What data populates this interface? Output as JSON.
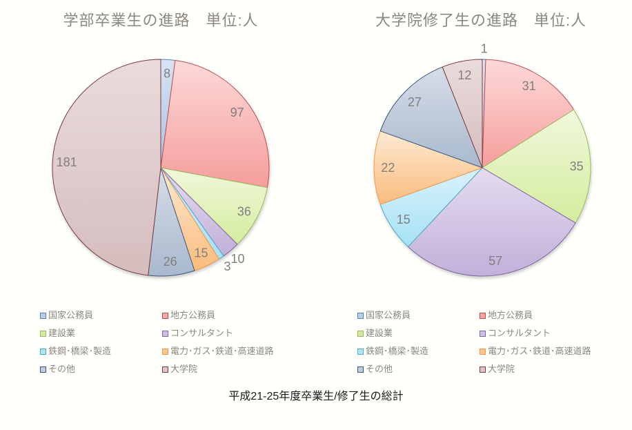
{
  "page": {
    "background": "#fffffc",
    "caption": "平成21-25年度卒業生/修了生の総計"
  },
  "colors": {
    "title_text": "#8c887e",
    "legend_text": "#8c887e",
    "slice_label": "#7f7f7f",
    "caption_text": "#1a1a1a"
  },
  "categories": [
    "国家公務員",
    "地方公務員",
    "建設業",
    "コンサルタント",
    "鉄鋼･橋梁･製造",
    "電力･ガス･鉄道･高速道路",
    "その他",
    "大学院"
  ],
  "palette": [
    {
      "key": "national-public-servant",
      "legend_fill": "#b9cfe9",
      "fill_light": "#d8e3f3",
      "fill_deep": "#a8c1e6",
      "border": "#5a81b5"
    },
    {
      "key": "local-public-servant",
      "legend_fill": "#f5a9a7",
      "fill_light": "#fcd9d8",
      "fill_deep": "#f59e9c",
      "border": "#bf4e4b"
    },
    {
      "key": "construction",
      "legend_fill": "#d3eb9e",
      "fill_light": "#f0f8dc",
      "fill_deep": "#d5ec9e",
      "border": "#9bbb59"
    },
    {
      "key": "consultant",
      "legend_fill": "#cec0e2",
      "fill_light": "#e4dcf0",
      "fill_deep": "#c2b0d9",
      "border": "#8064a2"
    },
    {
      "key": "steel-bridge-manufacturing",
      "legend_fill": "#aee4f5",
      "fill_light": "#daf2fb",
      "fill_deep": "#a5e1f5",
      "border": "#4bacc6"
    },
    {
      "key": "power-gas-railway-highway",
      "legend_fill": "#fac68f",
      "fill_light": "#fdead3",
      "fill_deep": "#fabc7e",
      "border": "#f79646"
    },
    {
      "key": "others",
      "legend_fill": "#c2cddc",
      "fill_light": "#d6dde7",
      "fill_deep": "#a9b9ce",
      "border": "#39567c"
    },
    {
      "key": "graduate-school",
      "legend_fill": "#dcc7c8",
      "fill_light": "#eadcdc",
      "fill_deep": "#d5bcbd",
      "border": "#7d3a3e"
    }
  ],
  "chart_data": [
    {
      "type": "pie",
      "title": "学部卒業生の進路　単位:人",
      "unit_label": "人",
      "categories": [
        "国家公務員",
        "地方公務員",
        "建設業",
        "コンサルタント",
        "鉄鋼･橋梁･製造",
        "電力･ガス･鉄道･高速道路",
        "その他",
        "大学院"
      ],
      "values": [
        8,
        97,
        36,
        10,
        3,
        15,
        26,
        181
      ],
      "start_angle_deg": 0,
      "direction": "clockwise",
      "data_labels": "values",
      "outside_label_indices": [
        3,
        4
      ],
      "legend_position": "bottom"
    },
    {
      "type": "pie",
      "title": "大学院修了生の進路　単位:人",
      "unit_label": "人",
      "categories": [
        "国家公務員",
        "地方公務員",
        "建設業",
        "コンサルタント",
        "鉄鋼･橋梁･製造",
        "電力･ガス･鉄道･高速道路",
        "その他",
        "大学院"
      ],
      "values": [
        1,
        31,
        35,
        57,
        15,
        22,
        27,
        12
      ],
      "start_angle_deg": 0,
      "direction": "clockwise",
      "data_labels": "values",
      "outside_label_indices": [
        0
      ],
      "legend_position": "bottom"
    }
  ]
}
